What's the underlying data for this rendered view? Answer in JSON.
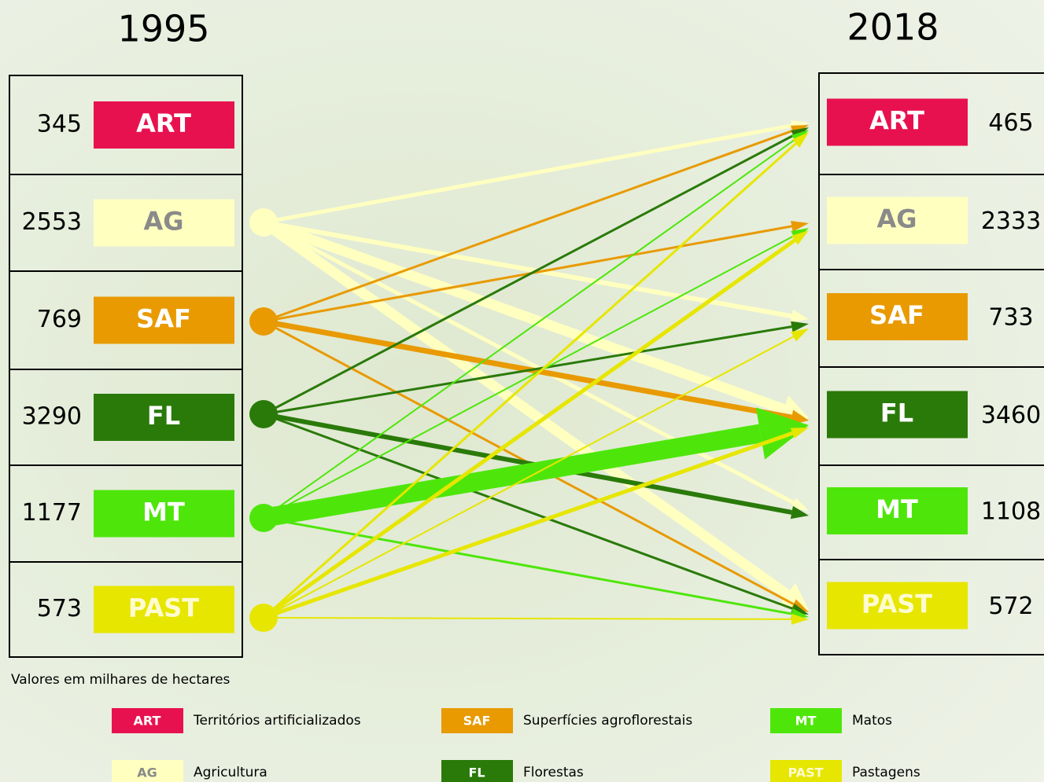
{
  "years": {
    "left": "1995",
    "right": "2018"
  },
  "left": [
    {
      "value": 345,
      "code": "ART"
    },
    {
      "value": 2553,
      "code": "AG"
    },
    {
      "value": 769,
      "code": "SAF"
    },
    {
      "value": 3290,
      "code": "FL"
    },
    {
      "value": 1177,
      "code": "MT"
    },
    {
      "value": 573,
      "code": "PAST"
    }
  ],
  "right": [
    {
      "value": 465,
      "code": "ART"
    },
    {
      "value": 2333,
      "code": "AG"
    },
    {
      "value": 733,
      "code": "SAF"
    },
    {
      "value": 3460,
      "code": "FL"
    },
    {
      "value": 1108,
      "code": "MT"
    },
    {
      "value": 572,
      "code": "PAST"
    }
  ],
  "note": "Valores em milhares de hectares",
  "legend": [
    {
      "code": "ART",
      "label": "Territórios artificializados"
    },
    {
      "code": "AG",
      "label": "Agricultura"
    },
    {
      "code": "SAF",
      "label": "Superfícies agroflorestais"
    },
    {
      "code": "FL",
      "label": "Florestas"
    },
    {
      "code": "MT",
      "label": "Matos"
    },
    {
      "code": "PAST",
      "label": "Pastagens"
    }
  ]
}
